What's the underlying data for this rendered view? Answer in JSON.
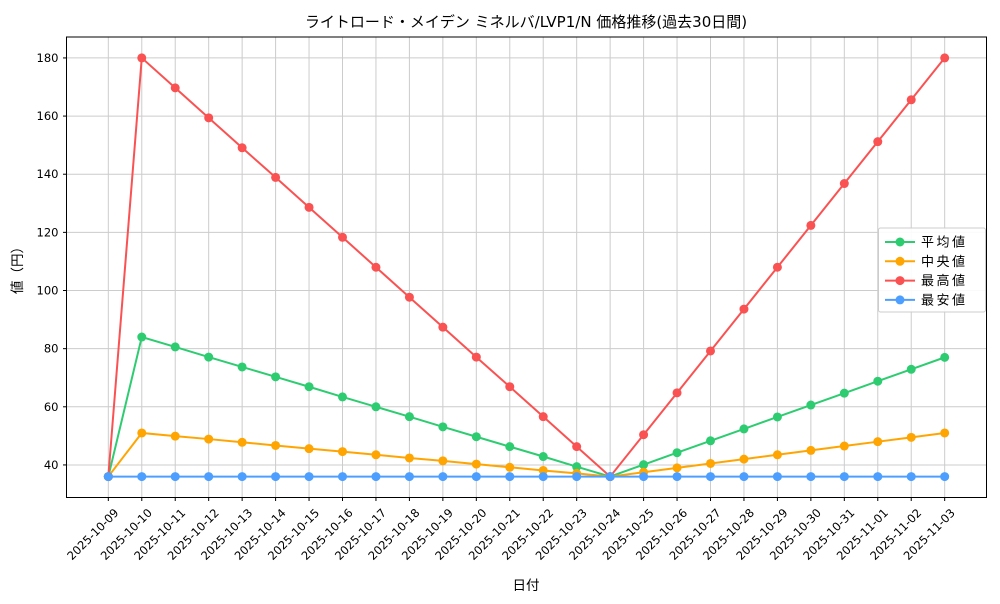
{
  "chart_data": {
    "type": "line",
    "title": "ライトロード・メイデン ミネルバ/LVP1/N 価格推移(過去30日間)",
    "xlabel": "日付",
    "ylabel": "値（円）",
    "categories": [
      "2025-10-09",
      "2025-10-10",
      "2025-10-11",
      "2025-10-12",
      "2025-10-13",
      "2025-10-14",
      "2025-10-15",
      "2025-10-16",
      "2025-10-17",
      "2025-10-18",
      "2025-10-19",
      "2025-10-20",
      "2025-10-21",
      "2025-10-22",
      "2025-10-23",
      "2025-10-24",
      "2025-10-25",
      "2025-10-26",
      "2025-10-27",
      "2025-10-28",
      "2025-10-29",
      "2025-10-30",
      "2025-10-31",
      "2025-11-01",
      "2025-11-02",
      "2025-11-03"
    ],
    "series": [
      {
        "name": "平均値",
        "color": "#2ecc71",
        "values": [
          36,
          84,
          80.6,
          77.1,
          73.7,
          70.3,
          66.9,
          63.4,
          60,
          56.6,
          53.1,
          49.7,
          46.3,
          42.9,
          39.4,
          36,
          40.1,
          44.2,
          48.3,
          52.4,
          56.5,
          60.6,
          64.7,
          68.8,
          72.9,
          77
        ]
      },
      {
        "name": "中央値",
        "color": "#ffa502",
        "values": [
          36,
          51,
          49.9,
          48.9,
          47.8,
          46.7,
          45.6,
          44.6,
          43.5,
          42.4,
          41.4,
          40.3,
          39.2,
          38.1,
          37.1,
          36,
          37.5,
          39,
          40.5,
          42,
          43.5,
          45,
          46.5,
          48,
          49.5,
          51
        ]
      },
      {
        "name": "最高値",
        "color": "#fa5252",
        "values": [
          36,
          180,
          169.7,
          159.4,
          149.1,
          138.9,
          128.6,
          118.3,
          108,
          97.7,
          87.4,
          77.1,
          66.9,
          56.6,
          46.3,
          36,
          50.4,
          64.8,
          79.2,
          93.6,
          108,
          122.4,
          136.8,
          151.2,
          165.6,
          180
        ]
      },
      {
        "name": "最安値",
        "color": "#4d9fff",
        "values": [
          36,
          36,
          36,
          36,
          36,
          36,
          36,
          36,
          36,
          36,
          36,
          36,
          36,
          36,
          36,
          36,
          36,
          36,
          36,
          36,
          36,
          36,
          36,
          36,
          36,
          36
        ]
      }
    ],
    "yticks": [
      40,
      60,
      80,
      100,
      120,
      140,
      160,
      180
    ],
    "ylim": [
      28.8,
      187.2
    ],
    "grid": true,
    "legend_position": "center-right"
  }
}
